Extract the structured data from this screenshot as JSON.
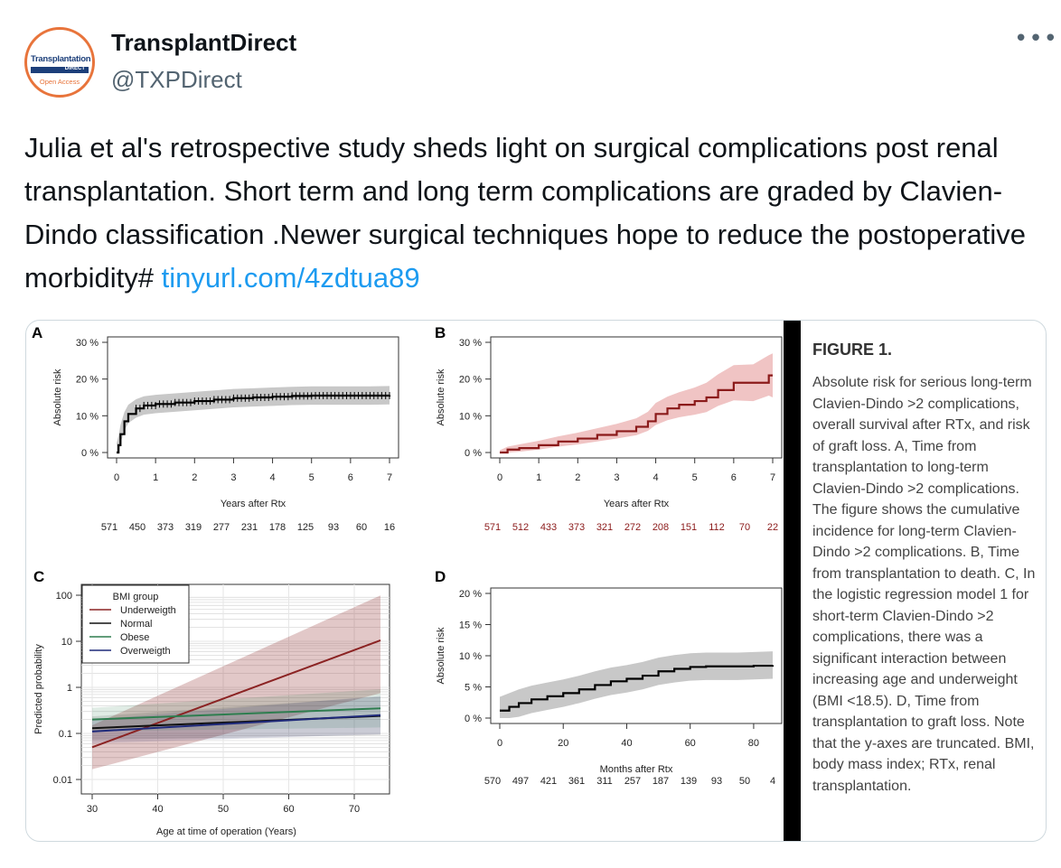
{
  "tweet": {
    "author_name": "TransplantDirect",
    "author_handle": "@TXPDirect",
    "more_label": "•••",
    "text": "Julia et al's retrospective study sheds light on surgical complications post renal transplantation. Short term and long term complications are graded by Clavien-Dindo classification .Newer surgical techniques hope to reduce the postoperative morbidity# ",
    "link": "tinyurl.com/4zdtua89",
    "avatar": {
      "line1": "Transplantation",
      "line2": "DIRECT",
      "line3": "Open Access"
    },
    "link_color": "#1d9bf0"
  },
  "figure": {
    "title": "FIGURE 1.",
    "caption": "Absolute risk for serious long-term Clavien-Dindo >2 complications, overall survival after RTx, and risk of graft loss. A, Time from transplantation to long-term Clavien-Dindo >2 complications. The figure shows the cumulative incidence for long-term Clavien-Dindo >2 complications. B, Time from transplantation to death. C, In the logistic regression model 1 for short-term Clavien-Dindo >2 complications, there was a significant interaction between increasing age and underweight (BMI <18.5). D, Time from transplantation to graft loss. Note that the y-axes are truncated. BMI, body mass index; RTx, renal transplantation."
  },
  "chart_data": [
    {
      "panel": "A",
      "type": "line",
      "xlabel": "Years after Rtx",
      "ylabel": "Absolute risk",
      "x_ticks": [
        "0",
        "1",
        "2",
        "3",
        "4",
        "5",
        "6",
        "7"
      ],
      "y_ticks": [
        "0 %",
        "10 %",
        "20 %",
        "30 %"
      ],
      "xlim": [
        0,
        7
      ],
      "ylim": [
        0,
        30
      ],
      "x": [
        0,
        0.05,
        0.1,
        0.2,
        0.3,
        0.5,
        0.7,
        1,
        1.5,
        2,
        2.5,
        3,
        3.5,
        4,
        4.5,
        5,
        5.5,
        6,
        6.5,
        7
      ],
      "y": [
        0,
        2,
        5,
        8.5,
        10.5,
        12,
        12.8,
        13.2,
        13.6,
        14,
        14.4,
        14.8,
        15,
        15.2,
        15.4,
        15.5,
        15.5,
        15.5,
        15.5,
        15.6
      ],
      "band_width": 2.5,
      "at_risk": [
        "571",
        "450",
        "373",
        "319",
        "277",
        "231",
        "178",
        "125",
        "93",
        "60",
        "16"
      ],
      "color": "#000000",
      "band_color": "#c8c8c8"
    },
    {
      "panel": "B",
      "type": "line",
      "xlabel": "Years after Rtx",
      "ylabel": "Absolute risk",
      "x_ticks": [
        "0",
        "1",
        "2",
        "3",
        "4",
        "5",
        "6",
        "7"
      ],
      "y_ticks": [
        "0 %",
        "10 %",
        "20 %",
        "30 %"
      ],
      "xlim": [
        0,
        7
      ],
      "ylim": [
        0,
        30
      ],
      "x": [
        0,
        0.2,
        0.5,
        1,
        1.5,
        2,
        2.5,
        3,
        3.5,
        3.8,
        4,
        4.3,
        4.6,
        5,
        5.3,
        5.6,
        6,
        6.5,
        6.9,
        7
      ],
      "y": [
        0,
        0.8,
        1.2,
        2,
        3,
        3.8,
        4.8,
        5.8,
        7,
        8.5,
        10.5,
        12,
        13,
        14,
        15,
        17,
        19,
        19,
        21,
        21
      ],
      "band_width": [
        0.6,
        0.8,
        1,
        1.2,
        1.4,
        1.6,
        1.8,
        2,
        2.3,
        2.6,
        3,
        3.2,
        3.4,
        3.7,
        4,
        4.3,
        4.8,
        5,
        5.5,
        6
      ],
      "at_risk": [
        "571",
        "512",
        "433",
        "373",
        "321",
        "272",
        "208",
        "151",
        "112",
        "70",
        "22"
      ],
      "color": "#8b1a1a",
      "band_color": "#f0c4c4"
    },
    {
      "panel": "C",
      "type": "line",
      "xlabel": "Age at time of operation (Years)",
      "ylabel": "Predicted probability",
      "x_ticks": [
        "30",
        "40",
        "50",
        "60",
        "70"
      ],
      "y_ticks": [
        "0.01",
        "0.1",
        "1",
        "10",
        "100"
      ],
      "xlim": [
        30,
        74
      ],
      "ylim_log10": [
        -2,
        2
      ],
      "legend_title": "BMI group",
      "legend_position": "top-left",
      "series": [
        {
          "name": "Underweigth",
          "color": "#8b2323",
          "x": [
            30,
            74
          ],
          "y": [
            0.05,
            10.5
          ]
        },
        {
          "name": "Normal",
          "color": "#111111",
          "x": [
            30,
            74
          ],
          "y": [
            0.13,
            0.24
          ]
        },
        {
          "name": "Obese",
          "color": "#2e7d4f",
          "x": [
            30,
            74
          ],
          "y": [
            0.2,
            0.35
          ]
        },
        {
          "name": "Overweigth",
          "color": "#1f2a7a",
          "x": [
            30,
            74
          ],
          "y": [
            0.11,
            0.25
          ]
        }
      ]
    },
    {
      "panel": "D",
      "type": "line",
      "xlabel": "Months after Rtx",
      "ylabel": "Absolute risk",
      "x_ticks": [
        "0",
        "20",
        "40",
        "60",
        "80"
      ],
      "y_ticks": [
        "0 %",
        "5 %",
        "10 %",
        "15 %",
        "20 %"
      ],
      "xlim": [
        0,
        86
      ],
      "ylim": [
        0,
        20
      ],
      "x": [
        0,
        3,
        6,
        10,
        15,
        20,
        25,
        30,
        35,
        40,
        45,
        50,
        55,
        60,
        65,
        70,
        75,
        80,
        86
      ],
      "y": [
        1.2,
        1.8,
        2.4,
        3,
        3.5,
        4,
        4.6,
        5.3,
        5.9,
        6.3,
        6.8,
        7.5,
        7.9,
        8.2,
        8.3,
        8.3,
        8.3,
        8.4,
        8.5
      ],
      "band_width": 2.2,
      "at_risk": [
        "570",
        "497",
        "421",
        "361",
        "311",
        "257",
        "187",
        "139",
        "93",
        "50",
        "4"
      ],
      "color": "#000000",
      "band_color": "#c8c8c8"
    }
  ]
}
